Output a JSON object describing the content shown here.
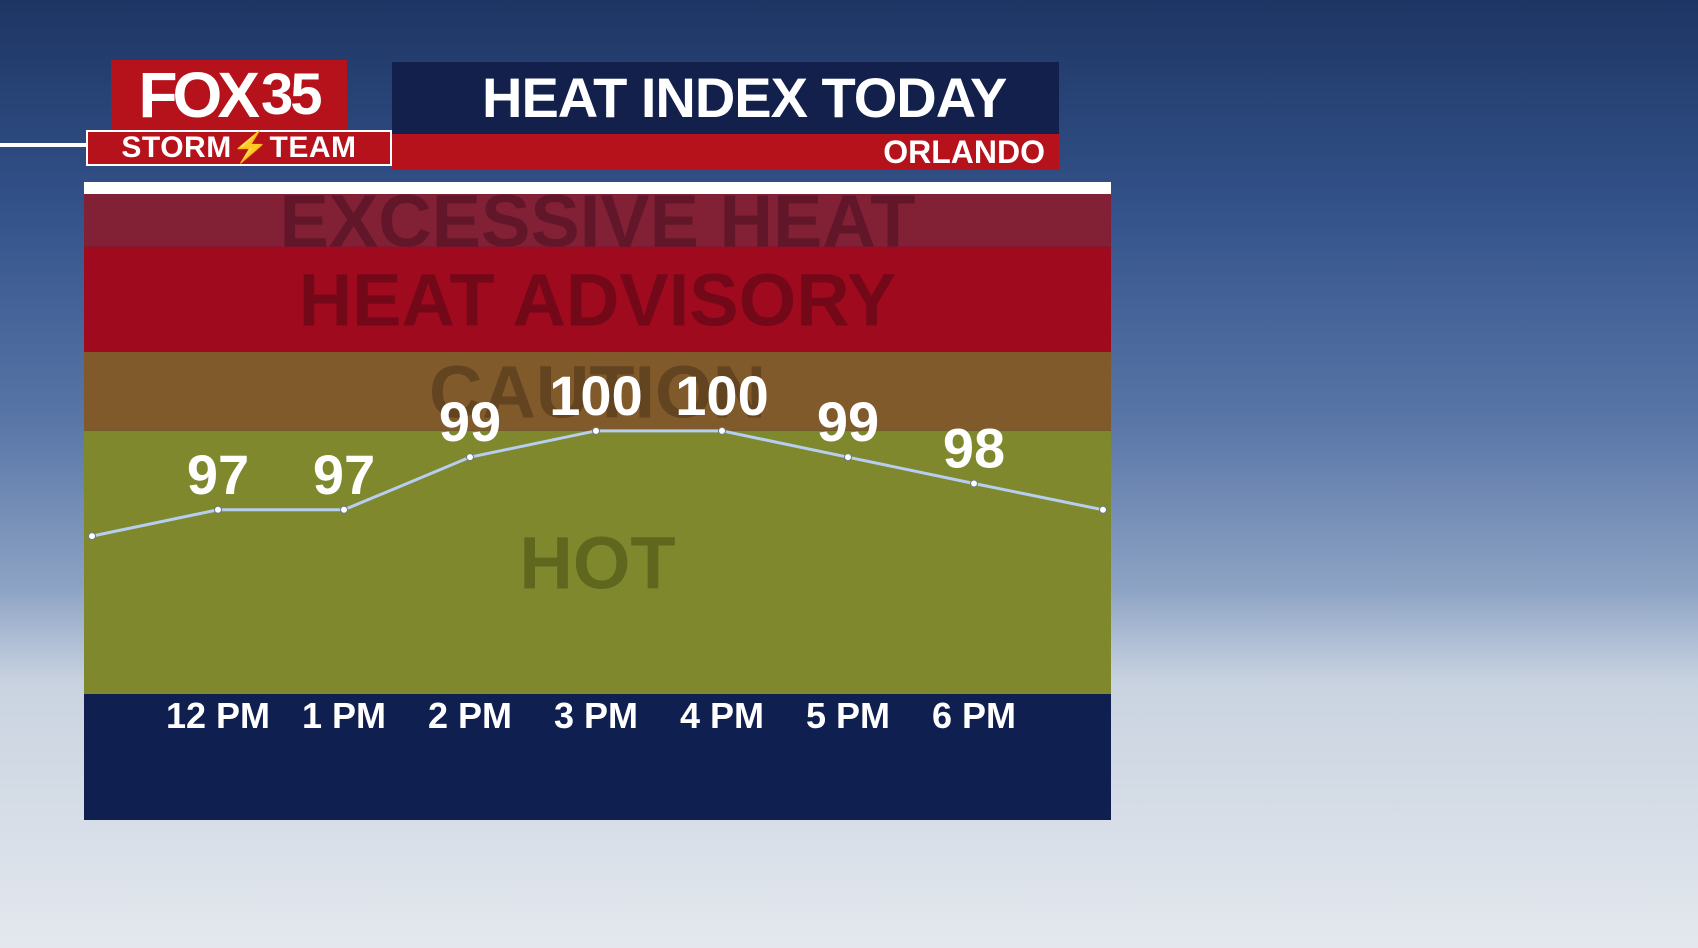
{
  "header": {
    "logo_fox": "FOX",
    "logo_number": "35",
    "logo_team": "STORM⚡TEAM",
    "title": "HEAT INDEX TODAY",
    "location": "ORLANDO"
  },
  "colors": {
    "navy": "#0f1f50",
    "brand_red": "#b5121b",
    "line": "#b6cef0"
  },
  "chart_data": {
    "type": "line",
    "title": "HEAT INDEX TODAY",
    "categories": [
      "12 PM",
      "1 PM",
      "2 PM",
      "3 PM",
      "4 PM",
      "5 PM",
      "6 PM"
    ],
    "values": [
      97,
      97,
      99,
      100,
      100,
      99,
      98
    ],
    "line_start_value": 96,
    "line_end_value": 97,
    "ylim": [
      90,
      109
    ],
    "bands": [
      {
        "label": "EXCESSIVE HEAT",
        "from": 107,
        "to": 109,
        "color": "#822036",
        "text_color": "#62162a"
      },
      {
        "label": "HEAT ADVISORY",
        "from": 103,
        "to": 107,
        "color": "#a00a1e",
        "text_color": "#720818"
      },
      {
        "label": "CAUTION",
        "from": 100,
        "to": 103,
        "color": "#805a2a",
        "text_color": "#624420"
      },
      {
        "label": "HOT",
        "from": 90,
        "to": 100,
        "color": "#7f882c",
        "text_color": "#5f671e"
      }
    ]
  }
}
